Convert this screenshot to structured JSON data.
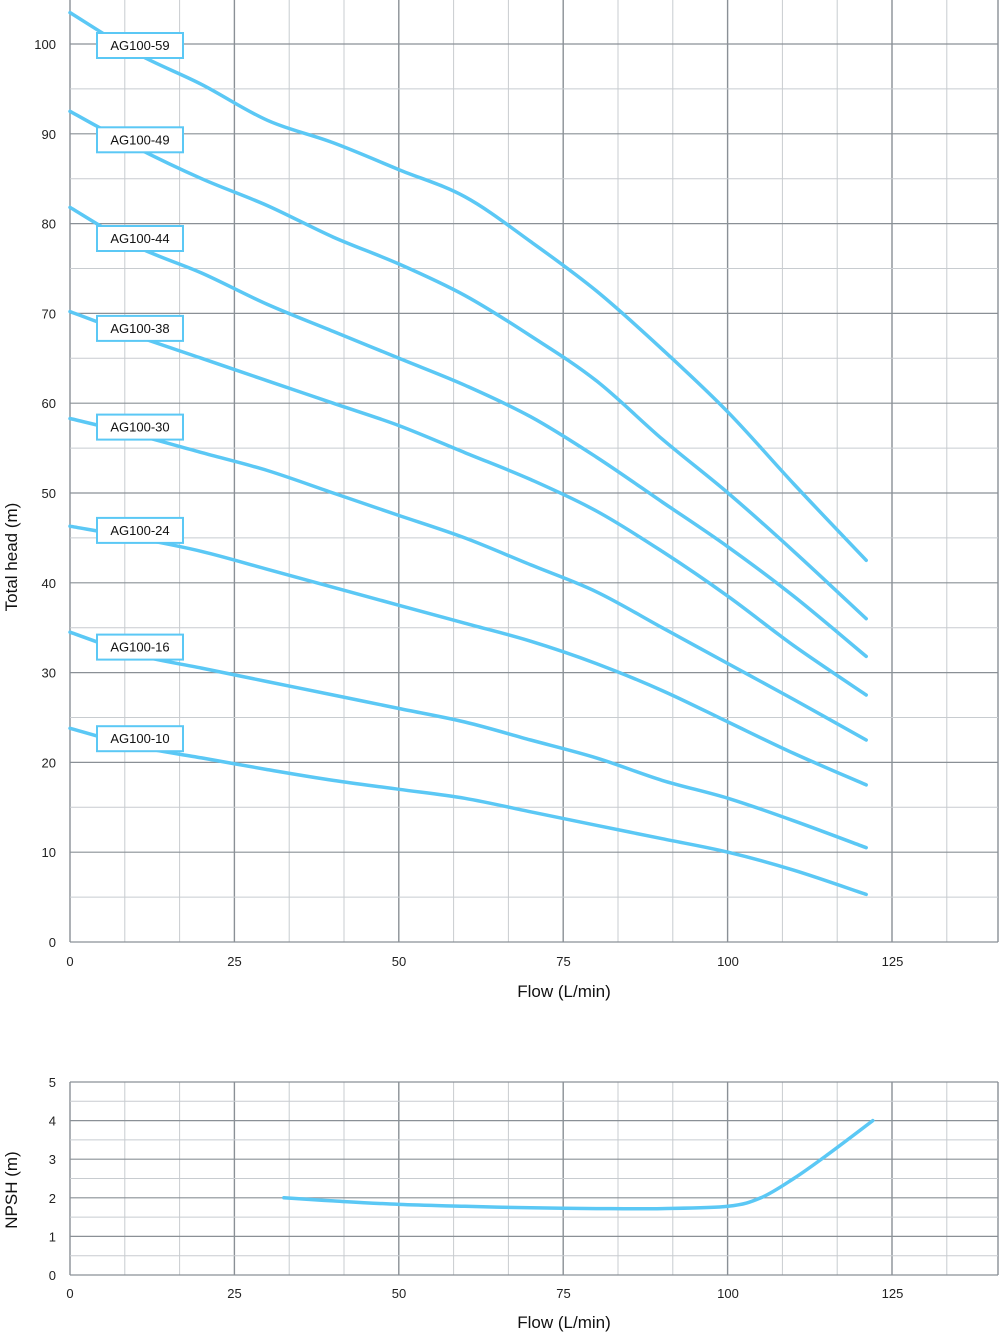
{
  "colors": {
    "curve": "#5bc8f5",
    "grid_minor": "#c8ccd0",
    "grid_major": "#8a9096",
    "label_border": "#5bc8f5"
  },
  "chart_data": [
    {
      "type": "line",
      "xlabel": "Flow (L/min)",
      "ylabel": "Total head (m)",
      "xlim": [
        0,
        142
      ],
      "ylim": [
        0,
        104
      ],
      "xticks": [
        0,
        25,
        50,
        75,
        100,
        125
      ],
      "yticks": [
        0,
        10,
        20,
        30,
        40,
        50,
        60,
        70,
        80,
        90,
        100
      ],
      "grid": true,
      "series": [
        {
          "name": "AG100-59",
          "x": [
            0,
            10,
            20,
            30,
            40,
            50,
            60,
            70,
            80,
            90,
            100,
            110,
            121
          ],
          "y": [
            103.5,
            99.0,
            95.5,
            91.5,
            89.0,
            86.0,
            83.0,
            78.0,
            72.5,
            66.0,
            59.0,
            51.0,
            42.5
          ]
        },
        {
          "name": "AG100-49",
          "x": [
            0,
            10,
            20,
            30,
            40,
            50,
            60,
            70,
            80,
            90,
            100,
            110,
            121
          ],
          "y": [
            92.5,
            88.5,
            85.0,
            82.0,
            78.5,
            75.5,
            72.0,
            67.5,
            62.5,
            56.0,
            50.0,
            43.5,
            36.0
          ]
        },
        {
          "name": "AG100-44",
          "x": [
            0,
            10,
            20,
            30,
            40,
            50,
            60,
            70,
            80,
            90,
            100,
            110,
            121
          ],
          "y": [
            81.8,
            77.5,
            74.5,
            71.0,
            68.0,
            65.0,
            62.0,
            58.5,
            54.0,
            49.0,
            44.0,
            38.5,
            31.8
          ]
        },
        {
          "name": "AG100-38",
          "x": [
            0,
            10,
            20,
            30,
            40,
            50,
            60,
            70,
            80,
            90,
            100,
            110,
            121
          ],
          "y": [
            70.2,
            67.5,
            65.0,
            62.5,
            60.0,
            57.5,
            54.5,
            51.5,
            48.0,
            43.5,
            38.5,
            33.0,
            27.5
          ]
        },
        {
          "name": "AG100-30",
          "x": [
            0,
            10,
            20,
            30,
            40,
            50,
            60,
            70,
            80,
            90,
            100,
            110,
            121
          ],
          "y": [
            58.3,
            56.5,
            54.5,
            52.5,
            50.0,
            47.5,
            45.0,
            42.0,
            39.0,
            35.0,
            31.0,
            27.0,
            22.5
          ]
        },
        {
          "name": "AG100-24",
          "x": [
            0,
            10,
            20,
            30,
            40,
            50,
            60,
            70,
            80,
            90,
            100,
            110,
            121
          ],
          "y": [
            46.3,
            45.0,
            43.5,
            41.5,
            39.5,
            37.5,
            35.5,
            33.5,
            31.0,
            28.0,
            24.5,
            21.0,
            17.5
          ]
        },
        {
          "name": "AG100-16",
          "x": [
            0,
            10,
            20,
            30,
            40,
            50,
            60,
            70,
            80,
            90,
            100,
            110,
            121
          ],
          "y": [
            34.5,
            32.0,
            30.5,
            29.0,
            27.5,
            26.0,
            24.5,
            22.5,
            20.5,
            18.0,
            16.0,
            13.5,
            10.5
          ]
        },
        {
          "name": "AG100-10",
          "x": [
            0,
            10,
            20,
            30,
            40,
            50,
            60,
            70,
            80,
            90,
            100,
            110,
            121
          ],
          "y": [
            23.8,
            21.8,
            20.5,
            19.2,
            18.0,
            17.0,
            16.0,
            14.5,
            13.0,
            11.5,
            10.0,
            8.0,
            5.3
          ]
        }
      ]
    },
    {
      "type": "line",
      "xlabel": "Flow (L/min)",
      "ylabel": "NPSH (m)",
      "xlim": [
        0,
        142
      ],
      "ylim": [
        0,
        5
      ],
      "xticks": [
        0,
        25,
        50,
        75,
        100,
        125
      ],
      "yticks": [
        0,
        1,
        2,
        3,
        4,
        5
      ],
      "grid": true,
      "series": [
        {
          "name": "",
          "x": [
            32.5,
            40,
            50,
            60,
            70,
            80,
            90,
            100,
            105,
            110,
            115,
            122
          ],
          "y": [
            2.0,
            1.92,
            1.83,
            1.78,
            1.74,
            1.72,
            1.72,
            1.78,
            2.0,
            2.5,
            3.1,
            4.0
          ]
        }
      ]
    }
  ]
}
